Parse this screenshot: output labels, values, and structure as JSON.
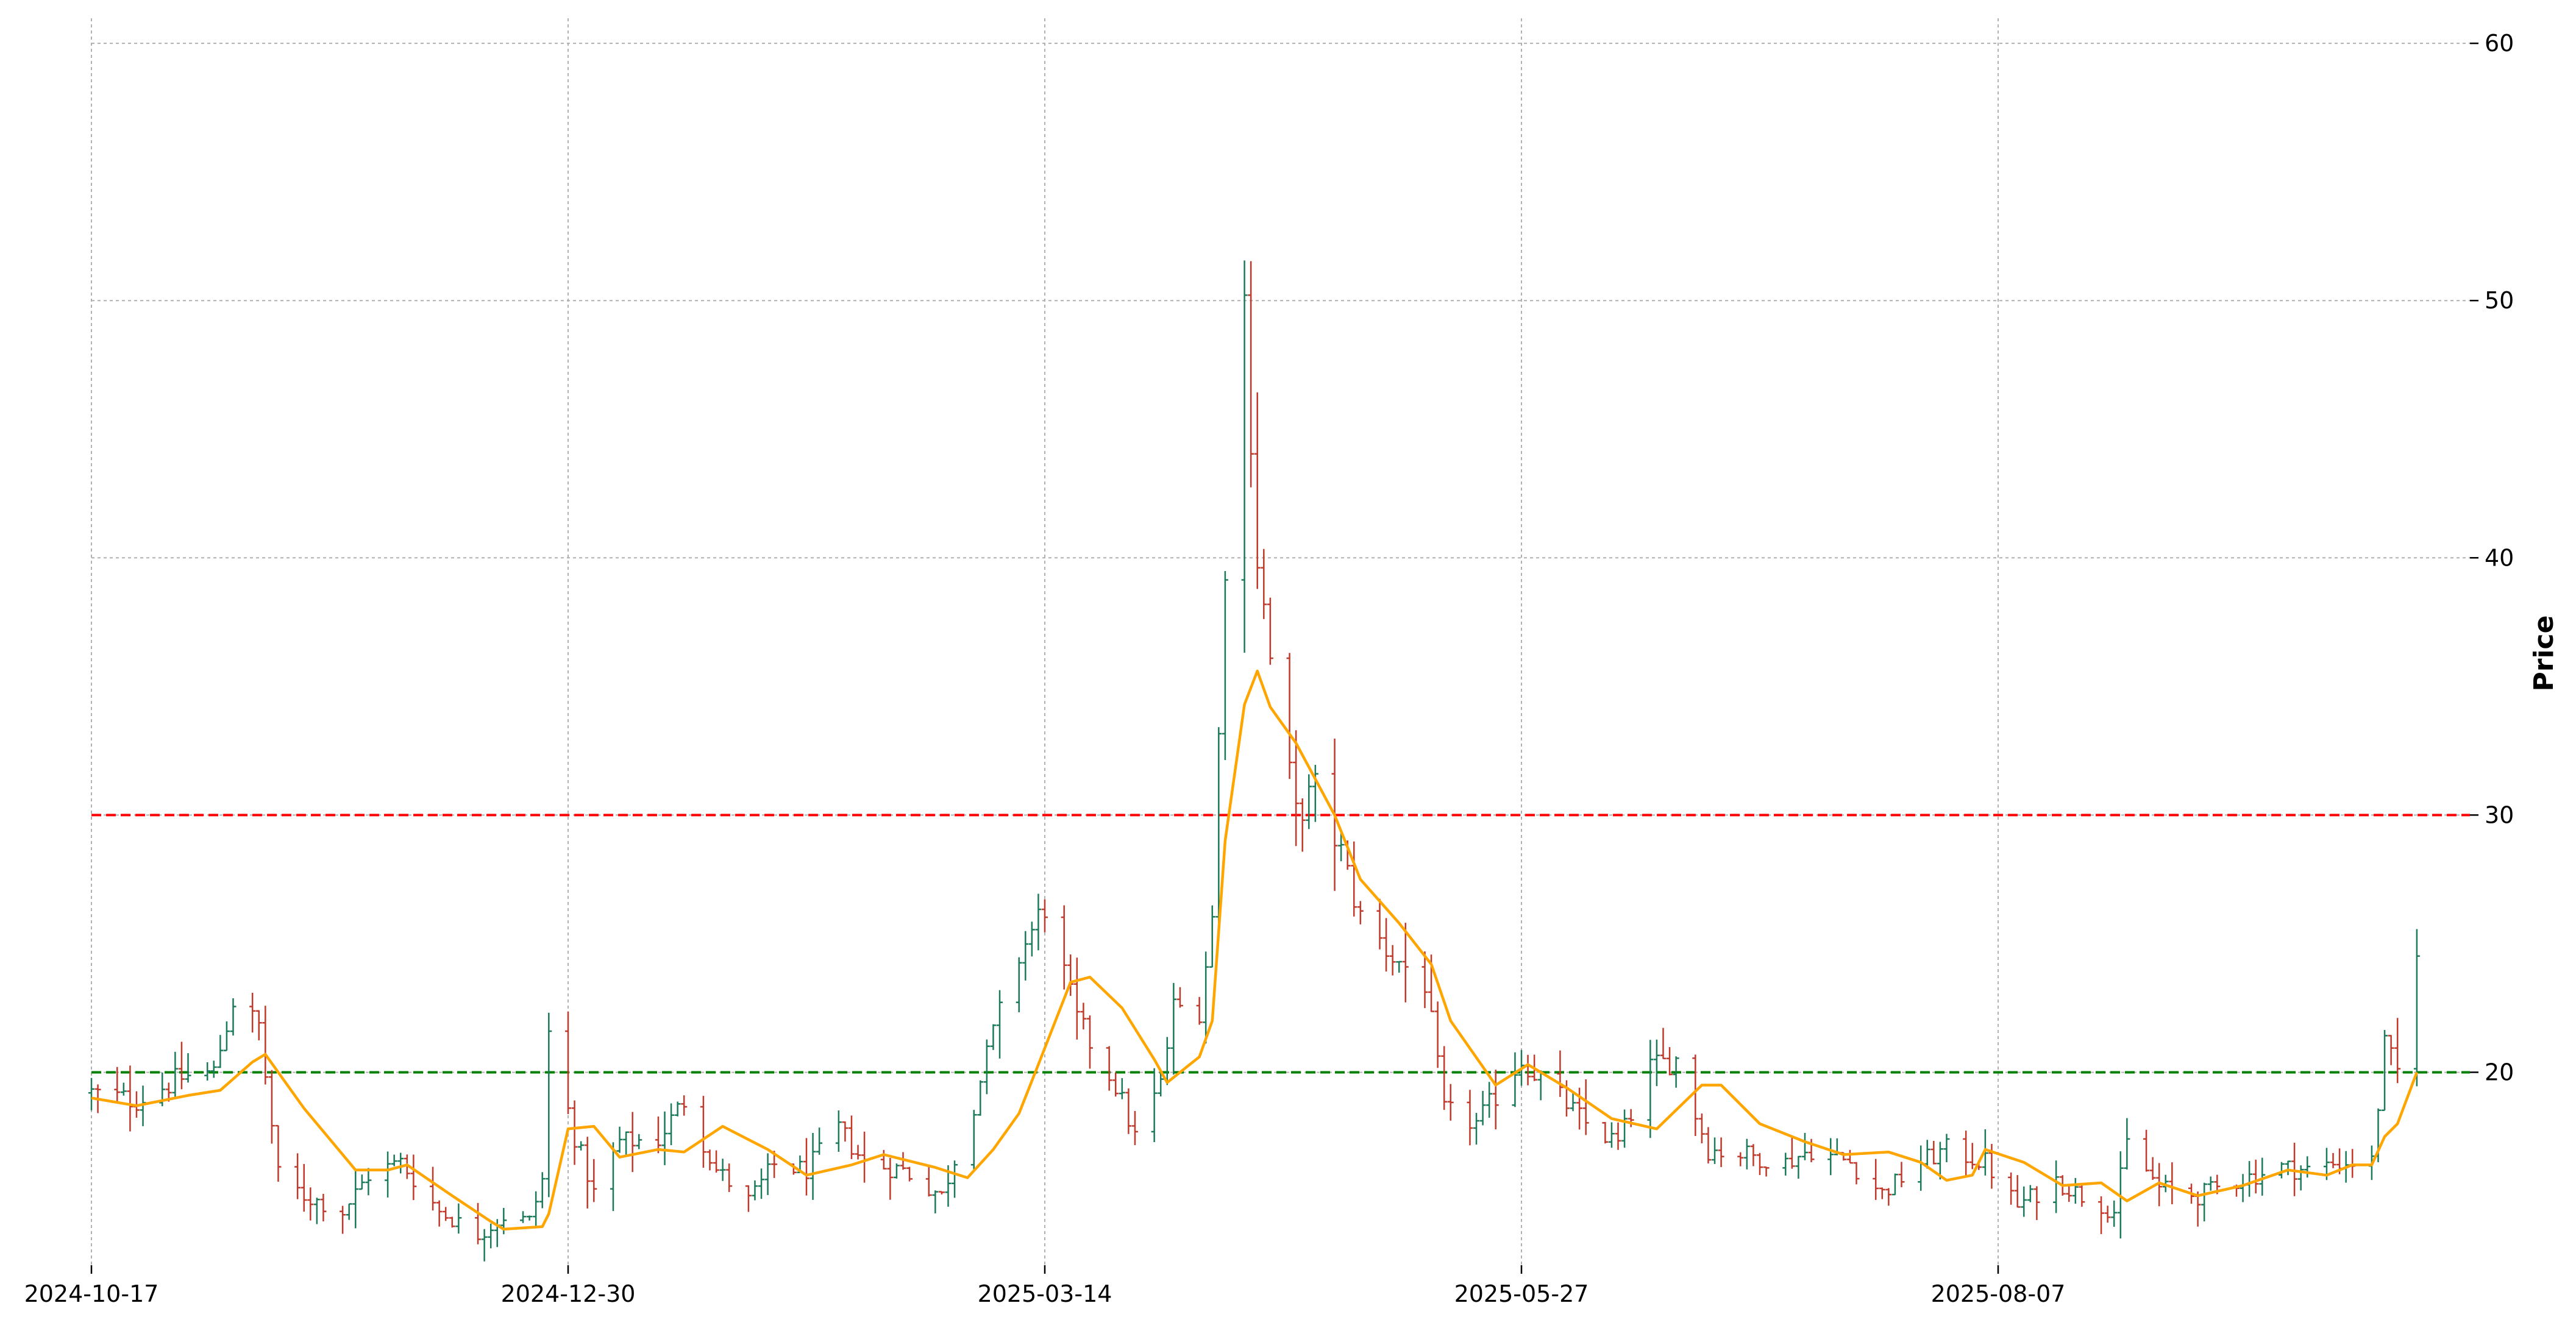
{
  "chart_data": {
    "type": "ohlc",
    "title": "",
    "xlabel": "",
    "ylabel": "Price",
    "y_axis_side": "right",
    "ylim": [
      12.5,
      60.5
    ],
    "y_ticks": [
      20,
      30,
      40,
      50,
      60
    ],
    "x_ticks": [
      "2024-10-17",
      "2024-12-30",
      "2025-03-14",
      "2025-05-27",
      "2025-08-07"
    ],
    "grid": true,
    "colors": {
      "up": "#1b7a5a",
      "down": "#c0392b",
      "ma": "#ffa500",
      "upper_line": "#ff0000",
      "lower_line": "#008000",
      "grid": "#b0b0b0"
    },
    "horizontal_lines": [
      {
        "y": 30,
        "color": "#ff0000",
        "style": "dashed"
      },
      {
        "y": 20,
        "color": "#008000",
        "style": "dashed"
      }
    ],
    "series": [
      {
        "type": "ohlc",
        "anchors": [
          [
            "2024-10-17",
            19.2
          ],
          [
            "2024-10-24",
            18.9
          ],
          [
            "2024-10-31",
            19.8
          ],
          [
            "2024-11-05",
            20.0
          ],
          [
            "2024-11-08",
            22.8
          ],
          [
            "2024-11-12",
            21.8
          ],
          [
            "2024-11-15",
            16.0
          ],
          [
            "2024-11-19",
            15.2
          ],
          [
            "2024-11-25",
            14.6
          ],
          [
            "2024-11-29",
            16.0
          ],
          [
            "2024-12-04",
            16.5
          ],
          [
            "2024-12-10",
            14.6
          ],
          [
            "2024-12-16",
            13.7
          ],
          [
            "2024-12-20",
            14.4
          ],
          [
            "2024-12-24",
            14.2
          ],
          [
            "2024-12-26",
            15.8
          ],
          [
            "2024-12-27",
            21.5
          ],
          [
            "2024-12-31",
            17.5
          ],
          [
            "2025-01-03",
            15.3
          ],
          [
            "2025-01-07",
            17.3
          ],
          [
            "2025-01-13",
            17.4
          ],
          [
            "2025-01-17",
            18.9
          ],
          [
            "2025-01-22",
            16.2
          ],
          [
            "2025-01-27",
            15.0
          ],
          [
            "2025-01-31",
            16.4
          ],
          [
            "2025-02-05",
            16.2
          ],
          [
            "2025-02-10",
            17.8
          ],
          [
            "2025-02-14",
            16.5
          ],
          [
            "2025-02-20",
            16.2
          ],
          [
            "2025-02-26",
            15.2
          ],
          [
            "2025-03-03",
            18.8
          ],
          [
            "2025-03-06",
            21.5
          ],
          [
            "2025-03-10",
            24.5
          ],
          [
            "2025-03-14",
            26.5
          ],
          [
            "2025-03-19",
            22.0
          ],
          [
            "2025-03-25",
            19.5
          ],
          [
            "2025-03-28",
            17.5
          ],
          [
            "2025-04-01",
            19.5
          ],
          [
            "2025-04-03",
            22.5
          ],
          [
            "2025-04-07",
            22.5
          ],
          [
            "2025-04-09",
            26.0
          ],
          [
            "2025-04-11",
            40.0
          ],
          [
            "2025-04-14",
            50.0
          ],
          [
            "2025-04-16",
            40.0
          ],
          [
            "2025-04-18",
            36.0
          ],
          [
            "2025-04-22",
            30.0
          ],
          [
            "2025-04-25",
            31.0
          ],
          [
            "2025-04-29",
            28.5
          ],
          [
            "2025-05-02",
            26.0
          ],
          [
            "2025-05-07",
            24.5
          ],
          [
            "2025-05-12",
            23.5
          ],
          [
            "2025-05-15",
            18.5
          ],
          [
            "2025-05-20",
            18.0
          ],
          [
            "2025-05-27",
            20.5
          ],
          [
            "2025-06-02",
            19.0
          ],
          [
            "2025-06-06",
            18.0
          ],
          [
            "2025-06-11",
            17.2
          ],
          [
            "2025-06-16",
            20.2
          ],
          [
            "2025-06-20",
            20.5
          ],
          [
            "2025-06-25",
            17.0
          ],
          [
            "2025-07-01",
            16.8
          ],
          [
            "2025-07-07",
            16.5
          ],
          [
            "2025-07-11",
            17.0
          ],
          [
            "2025-07-17",
            16.5
          ],
          [
            "2025-07-22",
            15.3
          ],
          [
            "2025-07-28",
            16.5
          ],
          [
            "2025-08-01",
            17.0
          ],
          [
            "2025-08-07",
            16.5
          ],
          [
            "2025-08-12",
            14.8
          ],
          [
            "2025-08-18",
            15.8
          ],
          [
            "2025-08-22",
            15.2
          ],
          [
            "2025-08-27",
            14.6
          ],
          [
            "2025-08-29",
            17.2
          ],
          [
            "2025-09-03",
            15.5
          ],
          [
            "2025-09-09",
            15.2
          ],
          [
            "2025-09-15",
            15.8
          ],
          [
            "2025-09-22",
            16.3
          ],
          [
            "2025-09-26",
            16.2
          ],
          [
            "2025-10-01",
            16.5
          ],
          [
            "2025-10-06",
            16.5
          ],
          [
            "2025-10-08",
            21.0
          ],
          [
            "2025-10-10",
            20.0
          ],
          [
            "2025-10-13",
            25.0
          ]
        ]
      },
      {
        "type": "line",
        "points": [
          [
            "2024-10-17",
            19.0
          ],
          [
            "2024-10-24",
            18.7
          ],
          [
            "2024-11-01",
            19.1
          ],
          [
            "2024-11-06",
            19.3
          ],
          [
            "2024-11-11",
            20.4
          ],
          [
            "2024-11-13",
            20.7
          ],
          [
            "2024-11-19",
            18.6
          ],
          [
            "2024-11-27",
            16.2
          ],
          [
            "2024-12-02",
            16.2
          ],
          [
            "2024-12-05",
            16.4
          ],
          [
            "2024-12-12",
            15.2
          ],
          [
            "2024-12-18",
            14.2
          ],
          [
            "2024-12-20",
            13.9
          ],
          [
            "2024-12-26",
            14.0
          ],
          [
            "2024-12-27",
            14.5
          ],
          [
            "2024-12-30",
            17.8
          ],
          [
            "2025-01-03",
            17.9
          ],
          [
            "2025-01-07",
            16.7
          ],
          [
            "2025-01-13",
            17.0
          ],
          [
            "2025-01-17",
            16.9
          ],
          [
            "2025-01-23",
            17.9
          ],
          [
            "2025-01-30",
            17.0
          ],
          [
            "2025-02-05",
            16.0
          ],
          [
            "2025-02-12",
            16.4
          ],
          [
            "2025-02-17",
            16.8
          ],
          [
            "2025-02-25",
            16.3
          ],
          [
            "2025-03-02",
            15.9
          ],
          [
            "2025-03-06",
            17.0
          ],
          [
            "2025-03-10",
            18.4
          ],
          [
            "2025-03-13",
            20.3
          ],
          [
            "2025-03-18",
            23.5
          ],
          [
            "2025-03-21",
            23.7
          ],
          [
            "2025-03-26",
            22.5
          ],
          [
            "2025-03-31",
            20.5
          ],
          [
            "2025-04-02",
            19.6
          ],
          [
            "2025-04-07",
            20.6
          ],
          [
            "2025-04-09",
            22.0
          ],
          [
            "2025-04-11",
            29.0
          ],
          [
            "2025-04-14",
            34.3
          ],
          [
            "2025-04-16",
            35.6
          ],
          [
            "2025-04-18",
            34.2
          ],
          [
            "2025-04-22",
            32.8
          ],
          [
            "2025-04-28",
            30.0
          ],
          [
            "2025-05-02",
            27.5
          ],
          [
            "2025-05-08",
            25.8
          ],
          [
            "2025-05-13",
            24.2
          ],
          [
            "2025-05-16",
            22.0
          ],
          [
            "2025-05-23",
            19.5
          ],
          [
            "2025-05-28",
            20.3
          ],
          [
            "2025-06-03",
            19.4
          ],
          [
            "2025-06-10",
            18.2
          ],
          [
            "2025-06-17",
            17.8
          ],
          [
            "2025-06-24",
            19.5
          ],
          [
            "2025-06-27",
            19.5
          ],
          [
            "2025-07-03",
            18.0
          ],
          [
            "2025-07-10",
            17.3
          ],
          [
            "2025-07-16",
            16.8
          ],
          [
            "2025-07-23",
            16.9
          ],
          [
            "2025-07-28",
            16.5
          ],
          [
            "2025-08-01",
            15.8
          ],
          [
            "2025-08-05",
            16.0
          ],
          [
            "2025-08-07",
            17.0
          ],
          [
            "2025-08-13",
            16.5
          ],
          [
            "2025-08-19",
            15.6
          ],
          [
            "2025-08-25",
            15.7
          ],
          [
            "2025-08-29",
            15.0
          ],
          [
            "2025-09-03",
            15.7
          ],
          [
            "2025-09-09",
            15.2
          ],
          [
            "2025-09-16",
            15.6
          ],
          [
            "2025-09-23",
            16.2
          ],
          [
            "2025-09-29",
            16.0
          ],
          [
            "2025-10-03",
            16.4
          ],
          [
            "2025-10-06",
            16.4
          ],
          [
            "2025-10-08",
            17.5
          ],
          [
            "2025-10-10",
            18.0
          ],
          [
            "2025-10-13",
            20.0
          ]
        ]
      }
    ]
  }
}
